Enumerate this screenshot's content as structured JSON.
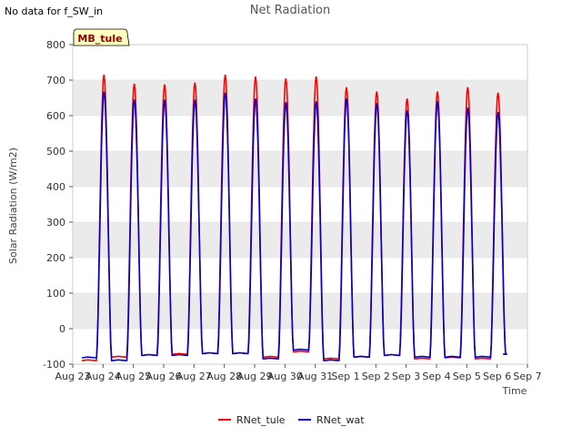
{
  "no_data_text": "No data for f_SW_in",
  "site_badge": "MB_tule",
  "colors": {
    "RNet_tule": "#ff0000",
    "RNet_wat": "#0000cc",
    "band": "#ebebeb",
    "badge_bg": "#ffffc0",
    "badge_text": "#8b0000"
  },
  "chart_data": {
    "type": "line",
    "title": "Net Radiation",
    "xlabel": "Time",
    "ylabel": "Solar Radiation (W/m2)",
    "ylim": [
      -100,
      800
    ],
    "yticks": [
      -100,
      0,
      100,
      200,
      300,
      400,
      500,
      600,
      700,
      800
    ],
    "xlim": [
      0,
      15
    ],
    "xticks": [
      {
        "x": 0,
        "label": "Aug 23"
      },
      {
        "x": 1,
        "label": "Aug 24"
      },
      {
        "x": 2,
        "label": "Aug 25"
      },
      {
        "x": 3,
        "label": "Aug 26"
      },
      {
        "x": 4,
        "label": "Aug 27"
      },
      {
        "x": 5,
        "label": "Aug 28"
      },
      {
        "x": 6,
        "label": "Aug 29"
      },
      {
        "x": 7,
        "label": "Aug 30"
      },
      {
        "x": 8,
        "label": "Aug 31"
      },
      {
        "x": 9,
        "label": "Sep 1"
      },
      {
        "x": 10,
        "label": "Sep 2"
      },
      {
        "x": 11,
        "label": "Sep 3"
      },
      {
        "x": 12,
        "label": "Sep 4"
      },
      {
        "x": 13,
        "label": "Sep 5"
      },
      {
        "x": 14,
        "label": "Sep 6"
      },
      {
        "x": 15,
        "label": "Sep 7"
      }
    ],
    "legend": "bottom-center",
    "grid": true,
    "x_unit": "days since Aug 23 00:00",
    "series": [
      {
        "name": "RNet_tule",
        "color": "#ff0000",
        "daily_peaks": [
          715,
          690,
          688,
          693,
          715,
          710,
          705,
          710,
          680,
          668,
          648,
          668,
          680,
          665
        ],
        "night_values": [
          -90,
          -80,
          -75,
          -72,
          -70,
          -70,
          -80,
          -65,
          -85,
          -80,
          -75,
          -85,
          -82,
          -85,
          -72
        ]
      },
      {
        "name": "RNet_wat",
        "color": "#0000cc",
        "daily_peaks": [
          668,
          645,
          645,
          645,
          665,
          648,
          638,
          640,
          648,
          635,
          615,
          640,
          622,
          610
        ],
        "night_values": [
          -82,
          -90,
          -75,
          -75,
          -70,
          -70,
          -85,
          -60,
          -90,
          -80,
          -75,
          -80,
          -80,
          -80,
          -72
        ]
      }
    ]
  },
  "legend": {
    "items": [
      {
        "label": "RNet_tule",
        "color": "#ff0000"
      },
      {
        "label": "RNet_wat",
        "color": "#0000cc"
      }
    ]
  }
}
